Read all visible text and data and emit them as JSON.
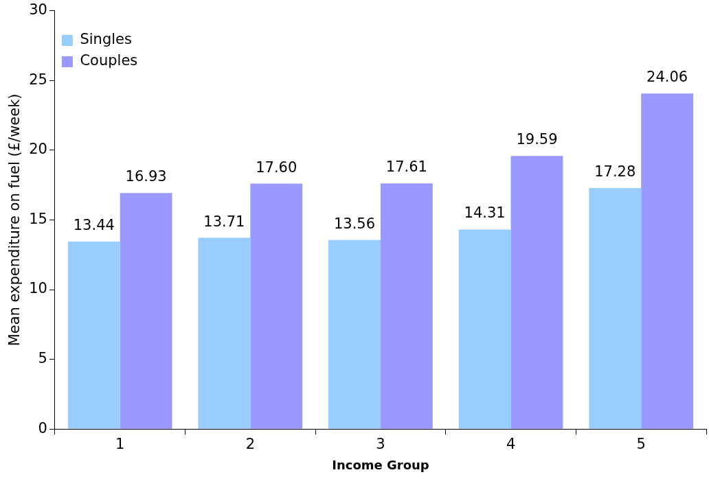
{
  "chart_data": {
    "type": "bar",
    "xlabel": "Income Group",
    "ylabel": "Mean expenditure on fuel (£/week)",
    "categories": [
      "1",
      "2",
      "3",
      "4",
      "5"
    ],
    "series": [
      {
        "name": "Singles",
        "color": "#99ccff",
        "values": [
          13.44,
          13.71,
          13.56,
          14.31,
          17.28
        ],
        "value_labels": [
          "13.44",
          "13.71",
          "13.56",
          "14.31",
          "17.28"
        ]
      },
      {
        "name": "Couples",
        "color": "#9999ff",
        "values": [
          16.93,
          17.6,
          17.61,
          19.59,
          24.06
        ],
        "value_labels": [
          "16.93",
          "17.60",
          "17.61",
          "19.59",
          "24.06"
        ]
      }
    ],
    "ylim": [
      0,
      30
    ],
    "yticks": [
      0,
      5,
      10,
      15,
      20,
      25,
      30
    ],
    "grid": false,
    "legend": "top left"
  }
}
